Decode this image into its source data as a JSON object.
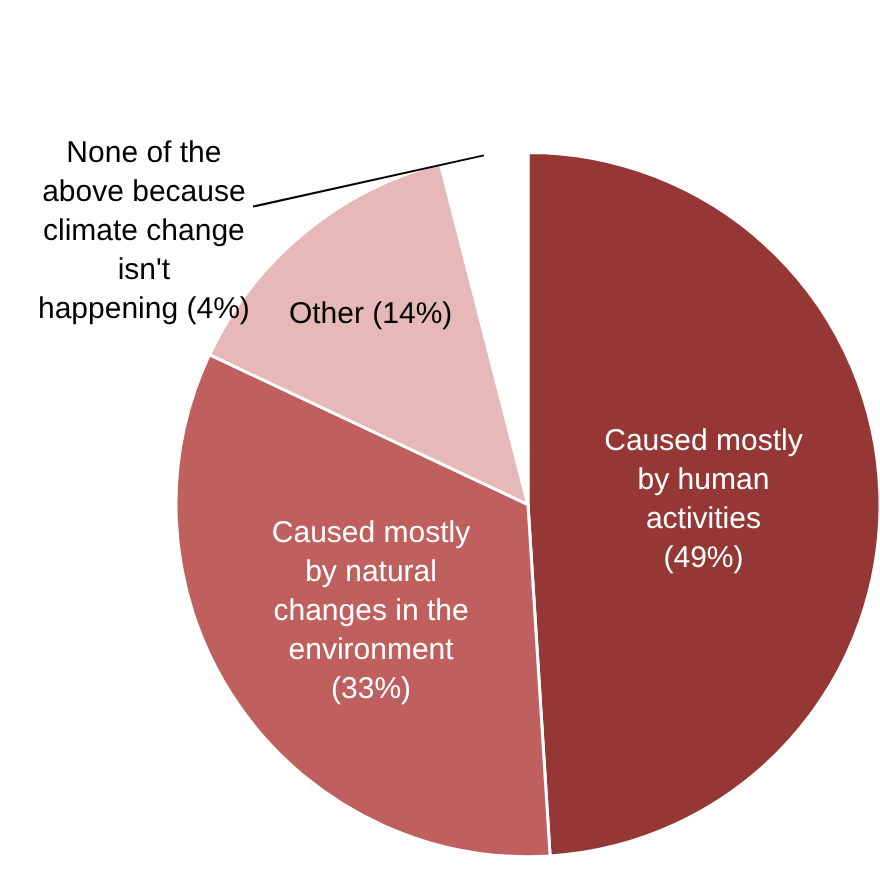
{
  "chart_data": {
    "type": "pie",
    "categories": [
      "Caused mostly by human activities",
      "Caused mostly by natural changes in the environment",
      "Other",
      "None of the above because climate change isn't happening"
    ],
    "values": [
      49,
      33,
      14,
      4
    ],
    "value_labels": [
      "(49%)",
      "(33%)",
      "(14%)",
      "(4%)"
    ],
    "colors": [
      "#953735",
      "#c0605e",
      "#e6b9b8",
      "#ffffff"
    ],
    "legend": false
  }
}
